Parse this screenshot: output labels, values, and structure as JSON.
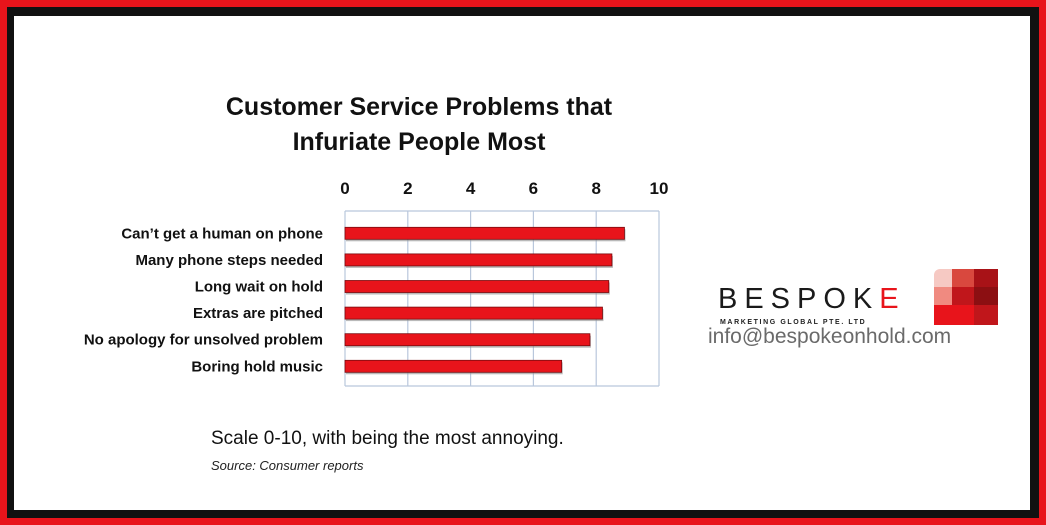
{
  "chart_data": {
    "type": "bar",
    "orientation": "horizontal",
    "title": "Customer Service Problems that Infuriate People Most",
    "title_lines": [
      "Customer Service Problems that",
      "Infuriate People Most"
    ],
    "categories": [
      "Can’t get a human on phone",
      "Many phone steps needed",
      "Long wait on hold",
      "Extras are pitched",
      "No apology for unsolved problem",
      "Boring hold music"
    ],
    "values": [
      8.9,
      8.5,
      8.4,
      8.2,
      7.8,
      6.9
    ],
    "xlim": [
      0,
      10
    ],
    "x_ticks": [
      "0",
      "2",
      "4",
      "6",
      "8",
      "10"
    ],
    "xaxis_position": "top",
    "grid": true,
    "legend": "none",
    "bar_color": "#e8141b"
  },
  "caption": "Scale 0-10, with being the most annoying.",
  "source": "Source: Consumer reports",
  "branding": {
    "logo_word_main": "BESPOK",
    "logo_word_last": "E",
    "logo_subtitle": "MARKETING GLOBAL PTE. LTD",
    "email": "info@bespokeonhold.com",
    "accent_color": "#e8141b"
  },
  "frame": {
    "outer_color": "#e8141b",
    "inner_color": "#111111"
  }
}
